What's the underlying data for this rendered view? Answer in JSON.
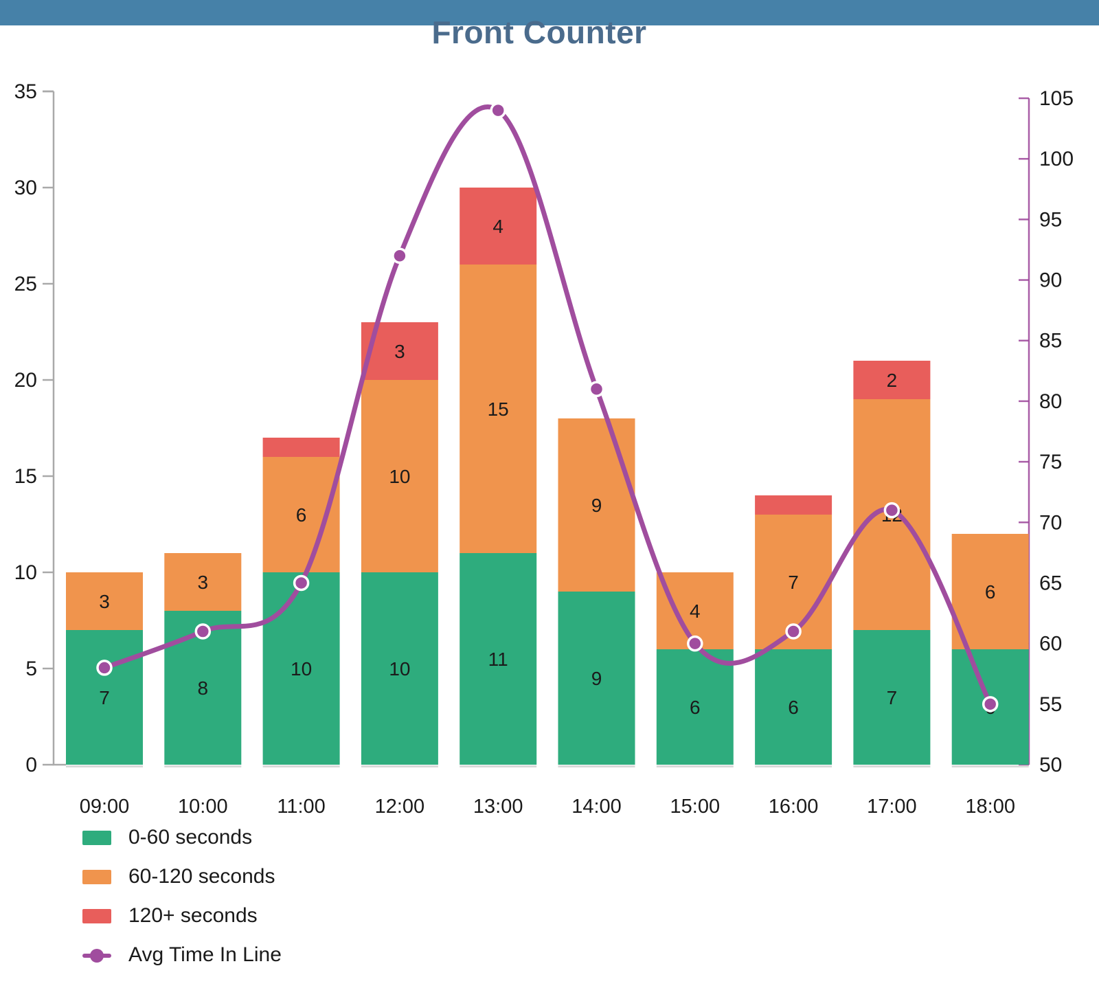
{
  "title": "Front Counter",
  "header": {
    "bar_color": "#4681A8",
    "title_color": "#4A6B8C"
  },
  "chart_data": {
    "type": "bar+line",
    "title": "Front Counter",
    "categories": [
      "09:00",
      "10:00",
      "11:00",
      "12:00",
      "13:00",
      "14:00",
      "15:00",
      "16:00",
      "17:00",
      "18:00"
    ],
    "series": [
      {
        "name": "0-60 seconds",
        "type": "bar",
        "color": "#2EAC7D",
        "values": [
          7,
          8,
          10,
          10,
          11,
          9,
          6,
          6,
          7,
          6
        ]
      },
      {
        "name": "60-120 seconds",
        "type": "bar",
        "color": "#F0944D",
        "values": [
          3,
          3,
          6,
          10,
          15,
          9,
          4,
          7,
          12,
          6
        ]
      },
      {
        "name": "120+ seconds",
        "type": "bar",
        "color": "#E85E5B",
        "values": [
          0,
          0,
          1,
          3,
          4,
          0,
          0,
          1,
          2,
          0
        ]
      },
      {
        "name": "Avg Time In Line",
        "type": "line",
        "axis": "right",
        "color": "#A04D9E",
        "values": [
          58,
          61,
          65,
          92,
          104,
          81,
          60,
          61,
          71,
          55
        ]
      }
    ],
    "bar_totals": [
      10,
      11,
      17,
      23,
      30,
      18,
      10,
      14,
      21,
      12
    ],
    "left_axis": {
      "min": 0,
      "max": 35,
      "step": 5,
      "ticks": [
        0,
        5,
        10,
        15,
        20,
        25,
        30,
        35
      ],
      "color": "#A9A9A9",
      "label_color": "#1A1A1A"
    },
    "right_axis": {
      "min": 50,
      "max": 105,
      "step": 5,
      "ticks": [
        50,
        55,
        60,
        65,
        70,
        75,
        80,
        85,
        90,
        95,
        100,
        105
      ],
      "color": "#A04D9E",
      "label_color": "#1A1A1A"
    },
    "grid": false,
    "legend_position": "bottom-left",
    "legend": [
      {
        "label": "0-60 seconds",
        "color": "#2EAC7D",
        "glyph": "swatch"
      },
      {
        "label": "60-120 seconds",
        "color": "#F0944D",
        "glyph": "swatch"
      },
      {
        "label": "120+ seconds",
        "color": "#E85E5B",
        "glyph": "swatch"
      },
      {
        "label": "Avg Time In Line",
        "color": "#A04D9E",
        "glyph": "line-dot"
      }
    ],
    "value_label_color": "#1B1B1B",
    "min_labeled_segment": 2
  }
}
